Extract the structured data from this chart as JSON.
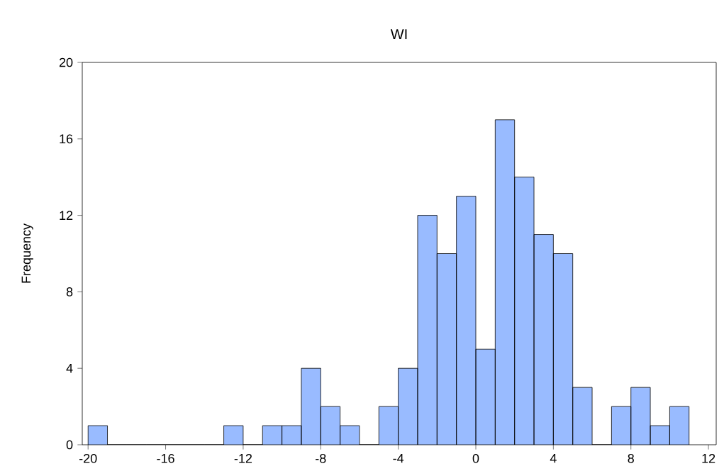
{
  "chart_data": {
    "type": "histogram",
    "title": "WI",
    "ylabel": "Frequency",
    "color": "#99bbff",
    "bins": [
      -20,
      -19,
      -18,
      -17,
      -16,
      -15,
      -14,
      -13,
      -12,
      -11,
      -10,
      -9,
      -8,
      -7,
      -6,
      -5,
      -4,
      -3,
      -2,
      -1,
      0,
      1,
      2,
      3,
      4,
      5,
      6,
      7,
      8,
      9,
      10,
      11
    ],
    "values": [
      1,
      0,
      0,
      0,
      0,
      0,
      0,
      1,
      0,
      1,
      1,
      4,
      2,
      1,
      0,
      2,
      4,
      12,
      10,
      13,
      5,
      17,
      14,
      11,
      10,
      3,
      0,
      2,
      3,
      1,
      2
    ],
    "xlim": [
      -20.3,
      12.4
    ],
    "ylim": [
      0,
      20
    ],
    "xticks": [
      -20,
      -16,
      -12,
      -8,
      -4,
      0,
      4,
      8,
      12
    ],
    "yticks": [
      0,
      4,
      8,
      12,
      16,
      20
    ]
  }
}
